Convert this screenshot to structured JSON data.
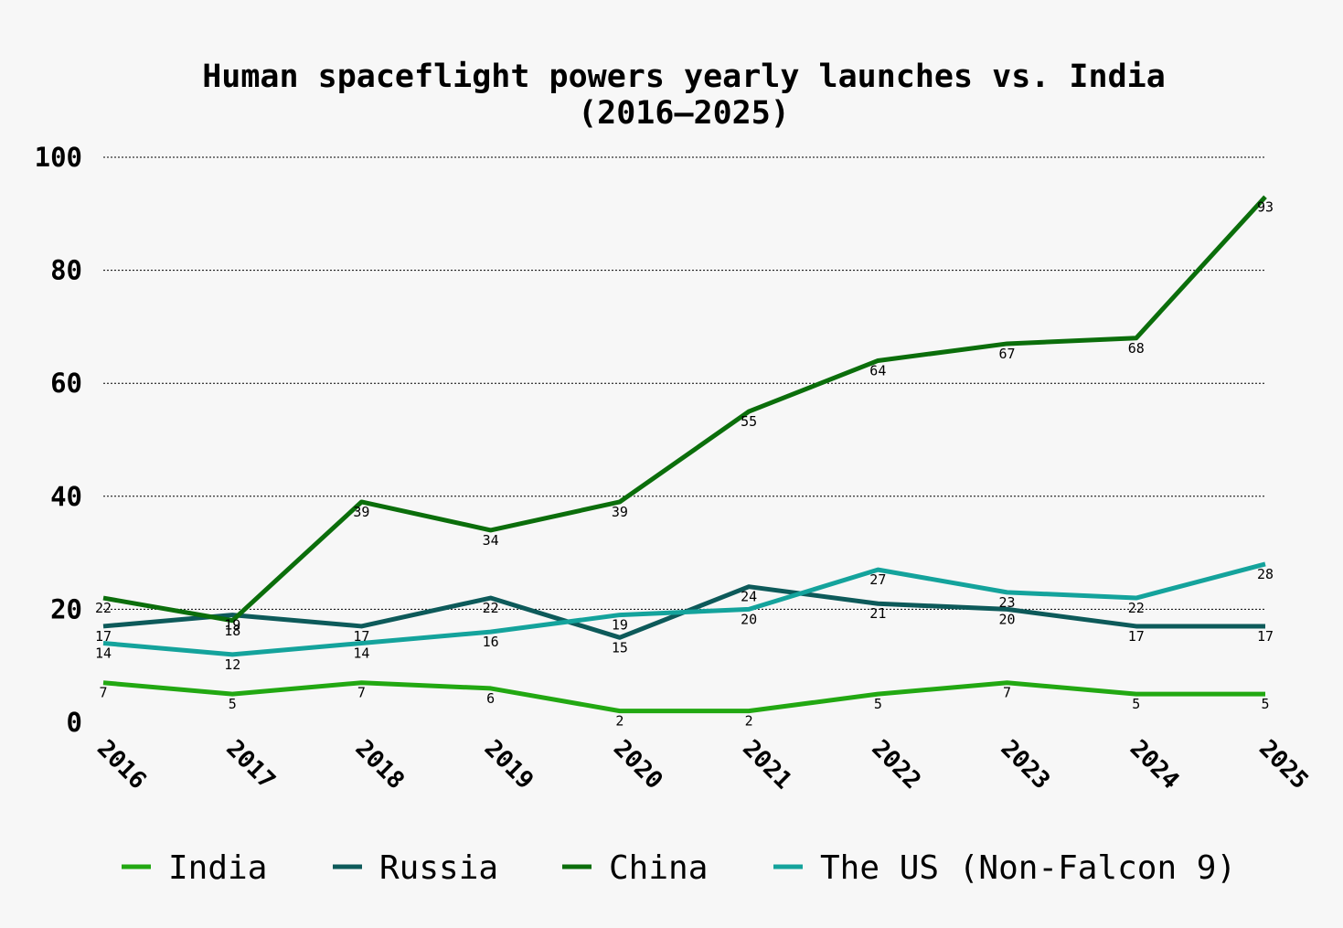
{
  "chart_data": {
    "type": "line",
    "title": [
      "Human spaceflight powers yearly launches vs. India",
      "(2016–2025)"
    ],
    "xlabel": "",
    "ylabel": "",
    "categories": [
      "2016",
      "2017",
      "2018",
      "2019",
      "2020",
      "2021",
      "2022",
      "2023",
      "2024",
      "2025"
    ],
    "ylim": [
      0,
      100
    ],
    "yticks": [
      0,
      20,
      40,
      60,
      80,
      100
    ],
    "grid": true,
    "legend_position": "bottom",
    "series": [
      {
        "name": "India",
        "color": "#22a812",
        "values": [
          7,
          5,
          7,
          6,
          2,
          2,
          5,
          7,
          5,
          5
        ]
      },
      {
        "name": "Russia",
        "color": "#0d5a5a",
        "values": [
          17,
          19,
          17,
          22,
          15,
          24,
          21,
          20,
          17,
          17
        ]
      },
      {
        "name": "China",
        "color": "#0b6e0b",
        "values": [
          22,
          18,
          39,
          34,
          39,
          55,
          64,
          67,
          68,
          93
        ]
      },
      {
        "name": "The US (Non-Falcon 9)",
        "color": "#14a39c",
        "values": [
          14,
          12,
          14,
          16,
          19,
          20,
          27,
          23,
          22,
          28
        ]
      }
    ]
  }
}
